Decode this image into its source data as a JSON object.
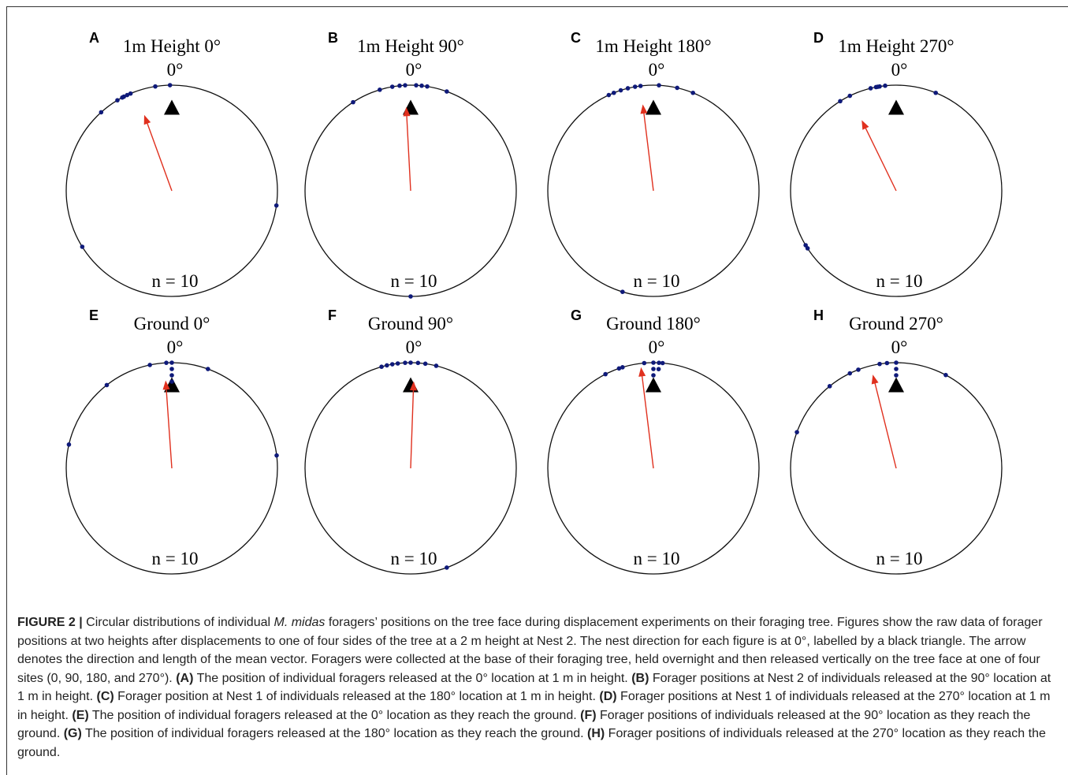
{
  "chart_data": [
    {
      "type": "circular",
      "label": "A",
      "title": "1m Height 0°",
      "north_label": "0°",
      "n_label": "n = 10",
      "nest_direction": 0,
      "point_color": "#0f1a7a",
      "vector_color": "#e0301e",
      "angles": [
        359,
        351,
        337,
        335,
        333,
        329,
        318,
        332,
        98,
        238
      ],
      "mean_angle": 340,
      "mean_length": 0.75
    },
    {
      "type": "circular",
      "label": "B",
      "title": "1m Height 90°",
      "north_label": "0°",
      "n_label": "n = 10",
      "nest_direction": 0,
      "point_color": "#0f1a7a",
      "vector_color": "#e0301e",
      "angles": [
        327,
        343,
        350,
        354,
        357,
        3,
        6,
        9,
        20,
        180
      ],
      "mean_angle": 357,
      "mean_length": 0.78
    },
    {
      "type": "circular",
      "label": "C",
      "title": "1m Height 180°",
      "north_label": "0°",
      "n_label": "n = 10",
      "nest_direction": 0,
      "point_color": "#0f1a7a",
      "vector_color": "#e0301e",
      "angles": [
        335,
        338,
        342,
        346,
        350,
        353,
        3,
        13,
        22,
        197
      ],
      "mean_angle": 353,
      "mean_length": 0.81
    },
    {
      "type": "circular",
      "label": "D",
      "title": "1m Height 270°",
      "north_label": "0°",
      "n_label": "n = 10",
      "nest_direction": 0,
      "point_color": "#0f1a7a",
      "vector_color": "#e0301e",
      "angles": [
        328,
        334,
        346,
        349,
        351,
        354,
        22,
        239,
        237,
        350
      ],
      "mean_angle": 334,
      "mean_length": 0.73
    },
    {
      "type": "circular",
      "label": "E",
      "title": "Ground 0°",
      "north_label": "0°",
      "n_label": "n = 10",
      "nest_direction": 0,
      "point_color": "#0f1a7a",
      "vector_color": "#e0301e",
      "angles": [
        348,
        357,
        0,
        0,
        0,
        0,
        20,
        322,
        283,
        83
      ],
      "mean_angle": 356,
      "mean_length": 0.82
    },
    {
      "type": "circular",
      "label": "F",
      "title": "Ground 90°",
      "north_label": "0°",
      "n_label": "n = 10",
      "nest_direction": 0,
      "point_color": "#0f1a7a",
      "vector_color": "#e0301e",
      "angles": [
        344,
        347,
        350,
        353,
        357,
        0,
        4,
        8,
        14,
        160
      ],
      "mean_angle": 2,
      "mean_length": 0.81
    },
    {
      "type": "circular",
      "label": "G",
      "title": "Ground 180°",
      "north_label": "0°",
      "n_label": "n = 10",
      "nest_direction": 0,
      "point_color": "#0f1a7a",
      "vector_color": "#e0301e",
      "angles": [
        333,
        341,
        343,
        355,
        0,
        0,
        0,
        3,
        3,
        5
      ],
      "mean_angle": 353,
      "mean_length": 0.95
    },
    {
      "type": "circular",
      "label": "H",
      "title": "Ground 270°",
      "north_label": "0°",
      "n_label": "n = 10",
      "nest_direction": 0,
      "point_color": "#0f1a7a",
      "vector_color": "#e0301e",
      "angles": [
        321,
        334,
        339,
        351,
        355,
        0,
        0,
        0,
        28,
        290
      ],
      "mean_angle": 346,
      "mean_length": 0.9
    }
  ],
  "caption": {
    "parts": [
      {
        "text": "FIGURE 2 | ",
        "style": "bold"
      },
      {
        "text": "Circular distributions of individual ",
        "style": "normal"
      },
      {
        "text": "M. midas",
        "style": "italic"
      },
      {
        "text": " foragers’ positions on the tree face during displacement experiments on their foraging tree. Figures show the raw data of forager positions at two heights after displacements to one of four sides of the tree at a 2 m height at Nest 2. The nest direction for each figure is at 0°, labelled by a black triangle. The arrow denotes the direction and length of the mean vector. Foragers were collected at the base of their foraging tree, held overnight and then released vertically on the tree face at one of four sites (0, 90, 180, and 270°). ",
        "style": "normal"
      },
      {
        "text": "(A)",
        "style": "bold"
      },
      {
        "text": " The position of individual foragers released at the 0° location at 1 m in height. ",
        "style": "normal"
      },
      {
        "text": "(B)",
        "style": "bold"
      },
      {
        "text": " Forager positions at Nest 2 of individuals released at the 90° location at 1 m in height. ",
        "style": "normal"
      },
      {
        "text": "(C)",
        "style": "bold"
      },
      {
        "text": " Forager position at Nest 1 of individuals released at the 180° location at 1 m in height. ",
        "style": "normal"
      },
      {
        "text": "(D)",
        "style": "bold"
      },
      {
        "text": " Forager positions at Nest 1 of individuals released at the 270° location at 1 m in height. ",
        "style": "normal"
      },
      {
        "text": "(E)",
        "style": "bold"
      },
      {
        "text": " The position of individual foragers released at the 0° location as they reach the ground. ",
        "style": "normal"
      },
      {
        "text": "(F)",
        "style": "bold"
      },
      {
        "text": " Forager positions of individuals released at the 90° location as they reach the ground. ",
        "style": "normal"
      },
      {
        "text": "(G)",
        "style": "bold"
      },
      {
        "text": " The position of individual foragers released at the 180° location as they reach the ground. ",
        "style": "normal"
      },
      {
        "text": "(H)",
        "style": "bold"
      },
      {
        "text": " Forager positions of individuals released at the 270° location as they reach the ground.",
        "style": "normal"
      }
    ]
  }
}
